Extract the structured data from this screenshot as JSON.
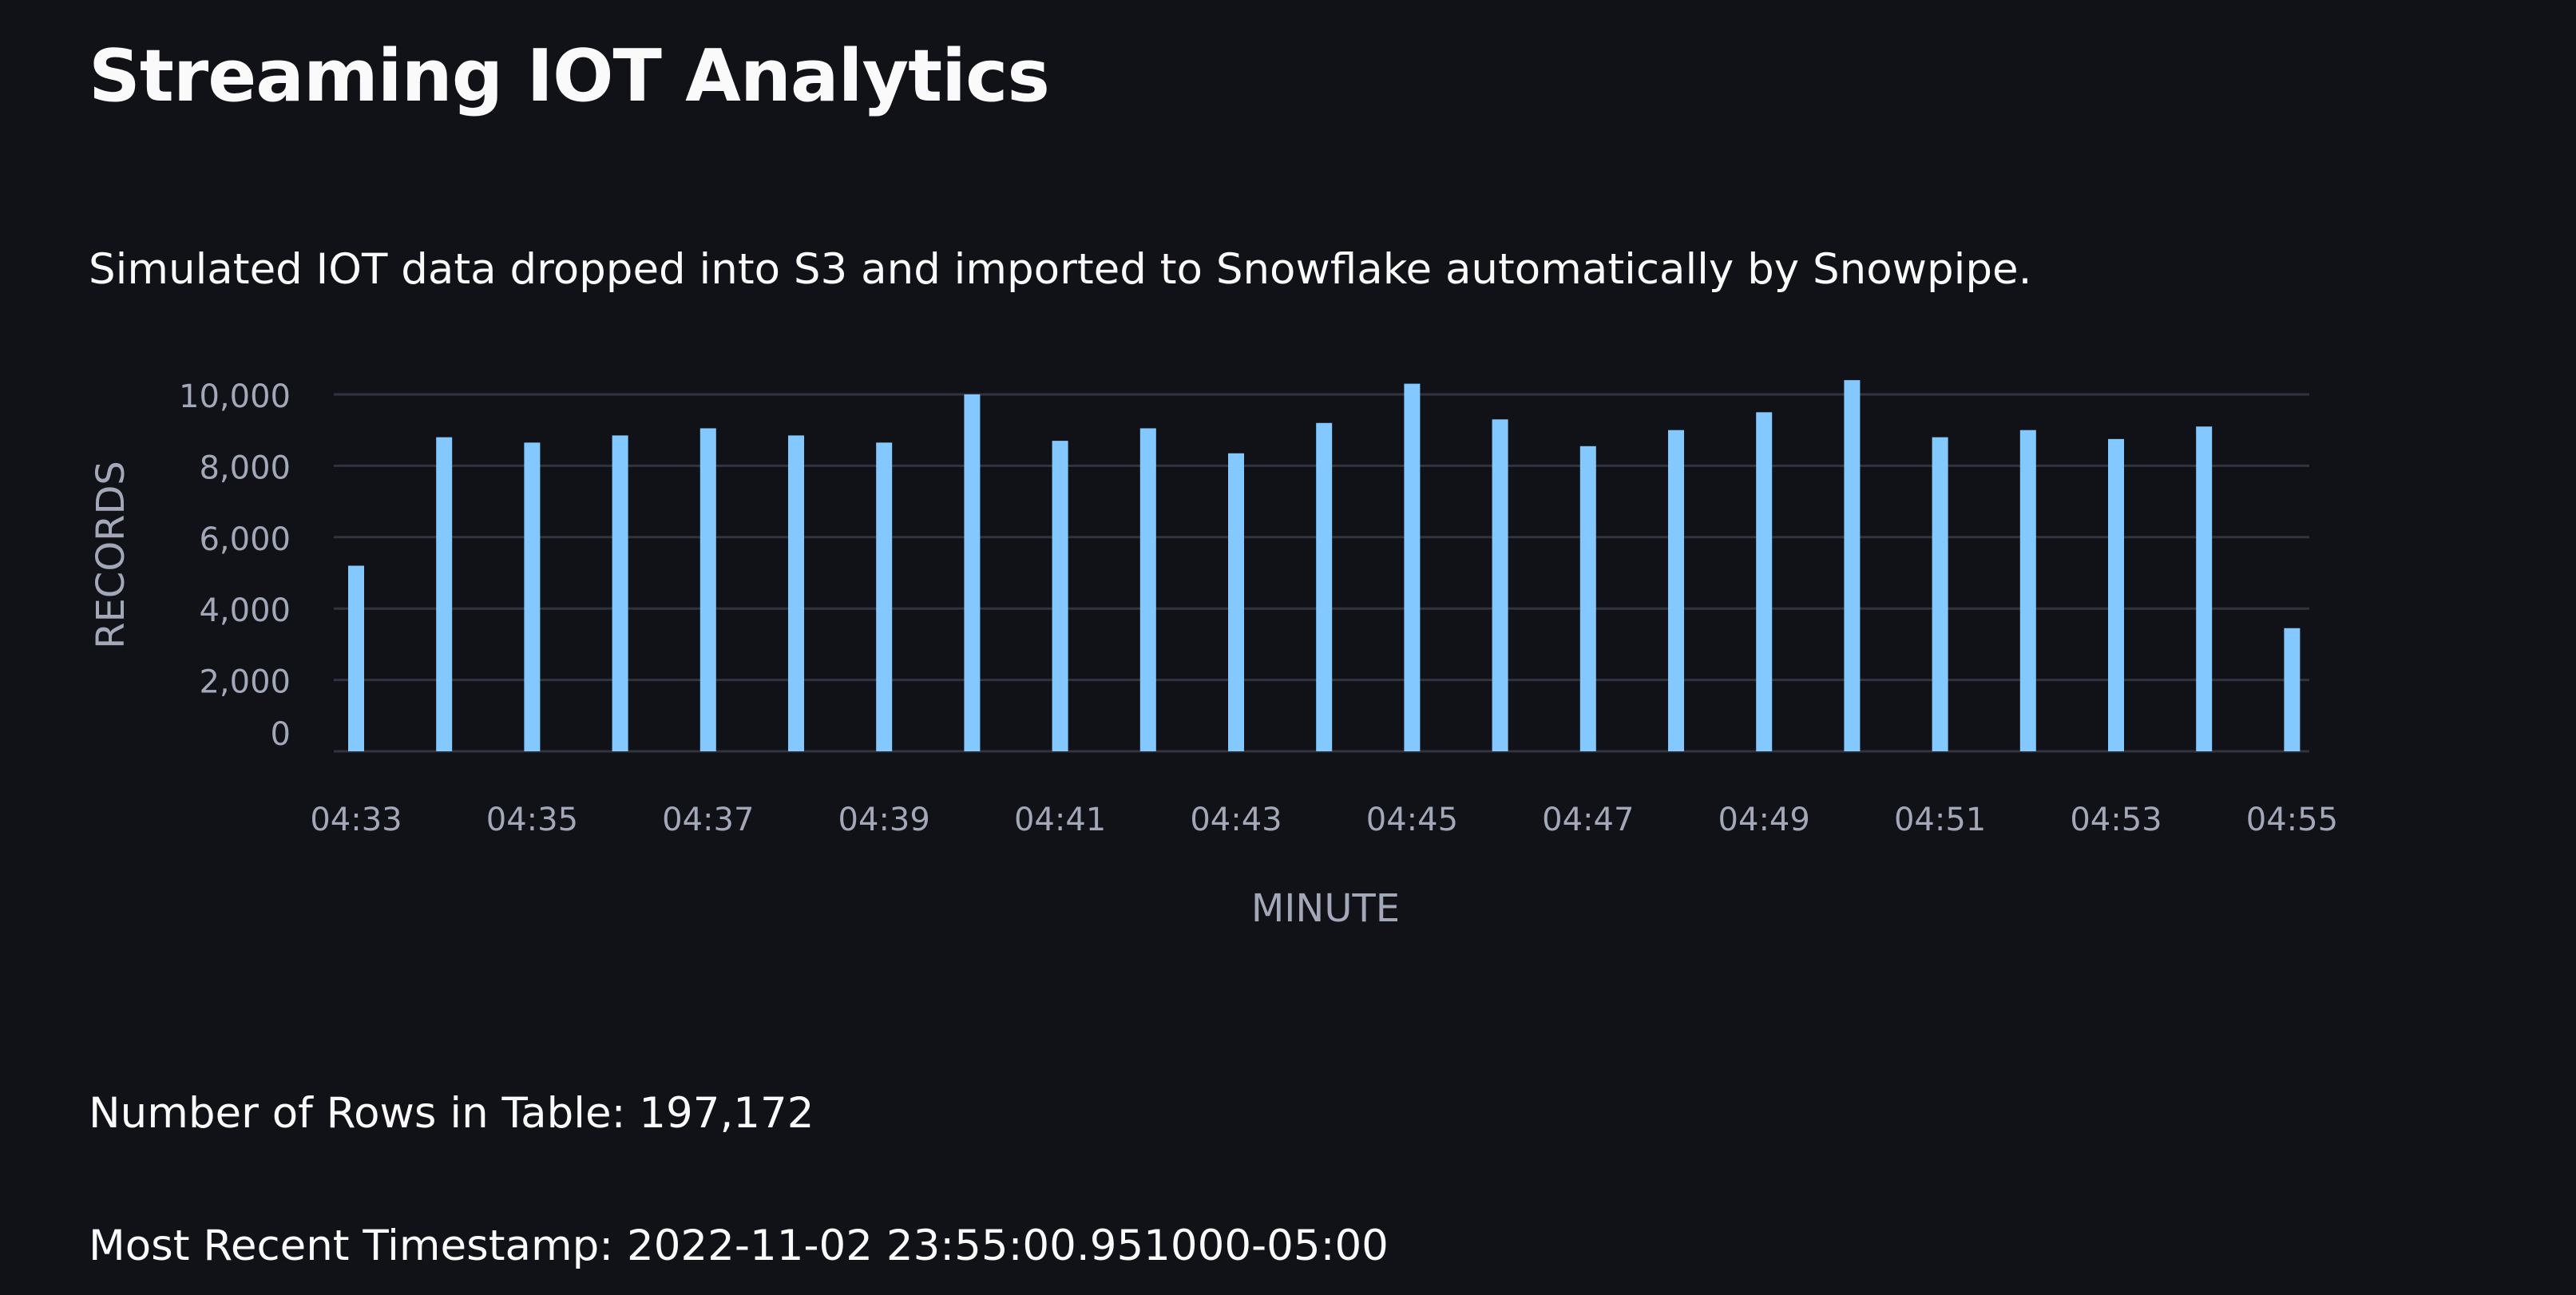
{
  "page": {
    "title": "Streaming IOT Analytics",
    "subtitle": "Simulated IOT data dropped into S3 and imported to Snowflake automatically by Snowpipe.",
    "rows_label": "Number of Rows in Table:",
    "rows_value": "197,172",
    "timestamp_label": "Most Recent Timestamp:",
    "timestamp_value": "2022-11-02 23:55:00.951000-05:00"
  },
  "chart_data": {
    "type": "bar",
    "xlabel": "MINUTE",
    "ylabel": "RECORDS",
    "grid": true,
    "ylim": [
      0,
      10000
    ],
    "yticks": [
      0,
      2000,
      4000,
      6000,
      8000,
      10000
    ],
    "ytick_labels": [
      "0",
      "2,000",
      "4,000",
      "6,000",
      "8,000",
      "10,000"
    ],
    "xtick_labels": [
      "04:33",
      "04:35",
      "04:37",
      "04:39",
      "04:41",
      "04:43",
      "04:45",
      "04:47",
      "04:49",
      "04:51",
      "04:53",
      "04:55"
    ],
    "categories": [
      "04:33",
      "04:34",
      "04:35",
      "04:36",
      "04:37",
      "04:38",
      "04:39",
      "04:40",
      "04:41",
      "04:42",
      "04:43",
      "04:44",
      "04:45",
      "04:46",
      "04:47",
      "04:48",
      "04:49",
      "04:50",
      "04:51",
      "04:52",
      "04:53",
      "04:54",
      "04:55"
    ],
    "values": [
      5200,
      8800,
      8650,
      8850,
      9050,
      8850,
      8650,
      10000,
      8700,
      9050,
      8350,
      9200,
      10300,
      9300,
      8550,
      9000,
      9500,
      10400,
      8800,
      9000,
      8750,
      9100,
      3450
    ],
    "colors": {
      "bar": "#83c9ff",
      "grid": "#31333f",
      "tick_text": "#a3a8b8",
      "axis_title": "#a3a8b8"
    }
  }
}
